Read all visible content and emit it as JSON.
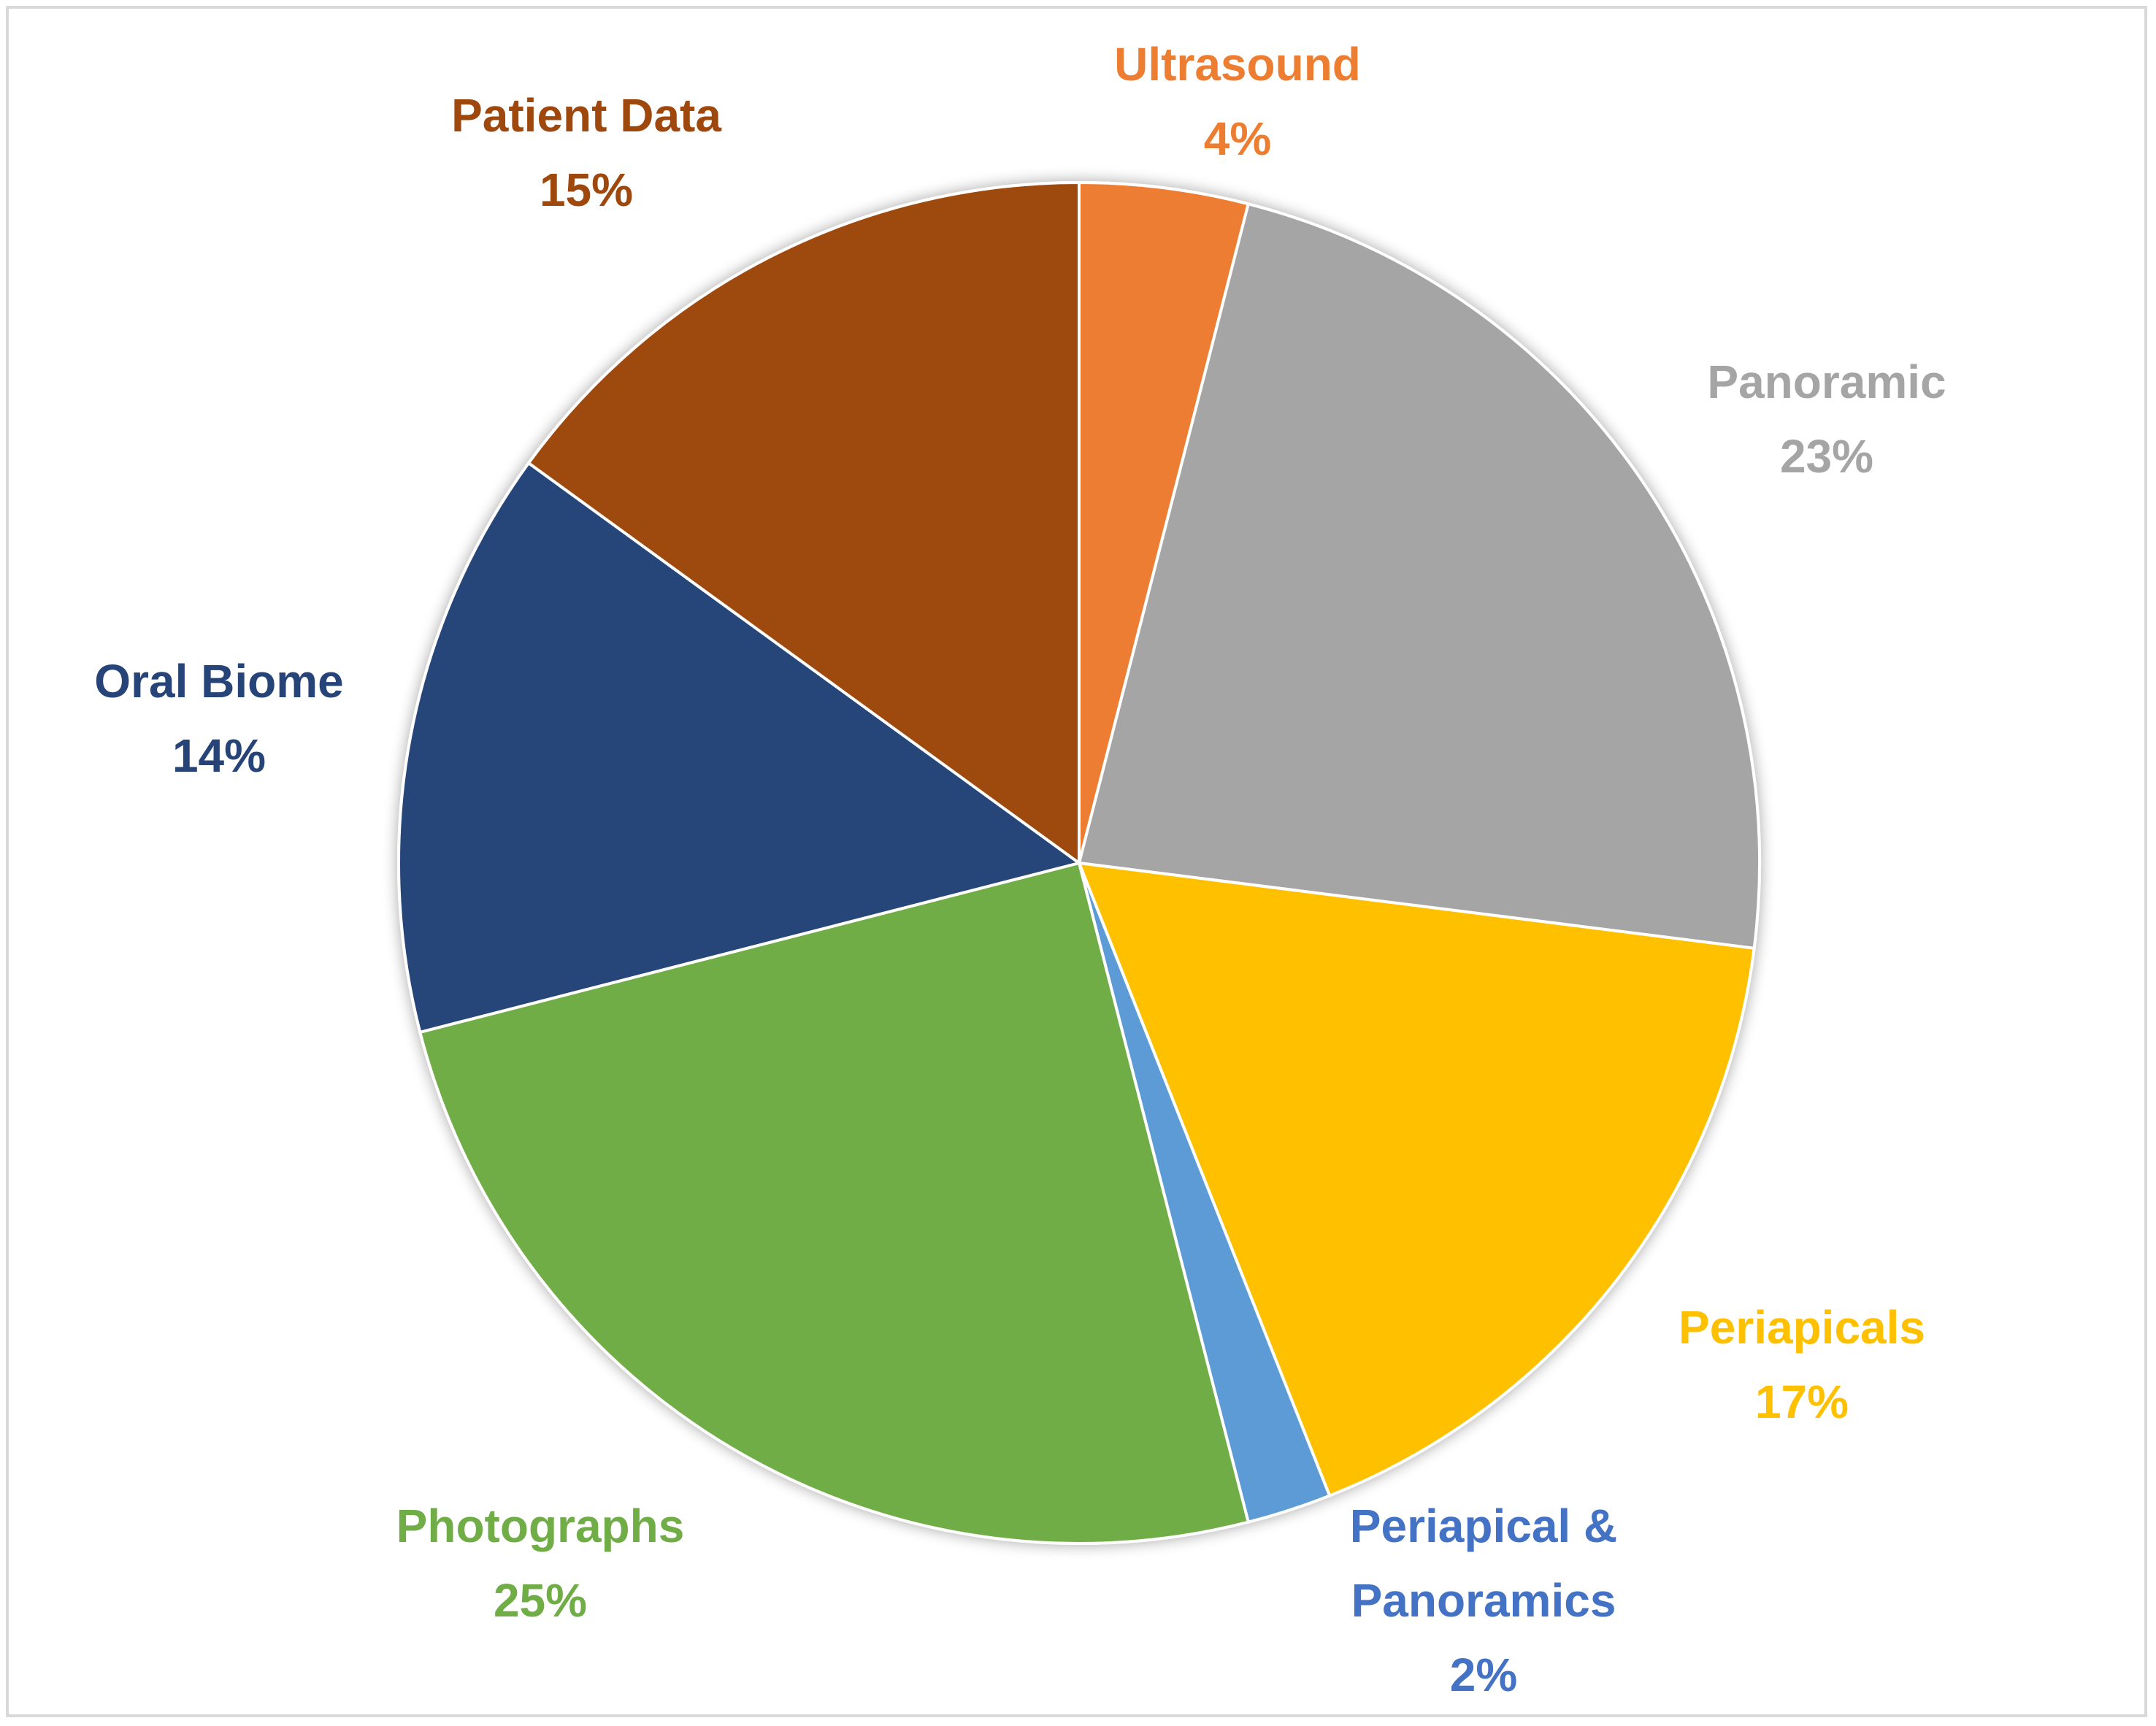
{
  "chart_data": {
    "type": "pie",
    "title": "",
    "start_angle_deg": 0,
    "direction": "clockwise",
    "slices": [
      {
        "label": "Ultrasound",
        "percent_label": "4%",
        "value": 4,
        "color": "#ED7D31"
      },
      {
        "label": "Panoramic",
        "percent_label": "23%",
        "value": 23,
        "color": "#A5A5A5"
      },
      {
        "label": "Periapicals",
        "percent_label": "17%",
        "value": 17,
        "color": "#FFC000"
      },
      {
        "label": "Periapical & Panoramics",
        "label_lines": [
          "Periapical &",
          "Panoramics"
        ],
        "percent_label": "2%",
        "value": 2,
        "color": "#5B9BD5",
        "label_color": "#4472C4"
      },
      {
        "label": "Photographs",
        "percent_label": "25%",
        "value": 25,
        "color": "#70AD47"
      },
      {
        "label": "Oral Biome",
        "percent_label": "14%",
        "value": 14,
        "color": "#264478"
      },
      {
        "label": "Patient Data",
        "percent_label": "15%",
        "value": 15,
        "color": "#9E480E"
      }
    ],
    "legend": "none",
    "data_labels": "outside"
  }
}
